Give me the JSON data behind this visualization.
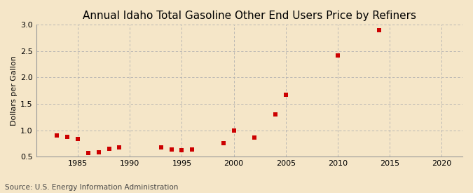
{
  "title": "Annual Idaho Total Gasoline Other End Users Price by Refiners",
  "ylabel": "Dollars per Gallon",
  "source": "Source: U.S. Energy Information Administration",
  "background_color": "#f5e6c8",
  "marker_color": "#cc0000",
  "xlim": [
    1981,
    2022
  ],
  "ylim": [
    0.5,
    3.0
  ],
  "xticks": [
    1985,
    1990,
    1995,
    2000,
    2005,
    2010,
    2015,
    2020
  ],
  "yticks": [
    0.5,
    1.0,
    1.5,
    2.0,
    2.5,
    3.0
  ],
  "ytick_labels": [
    "0.5",
    "1.0",
    "1.5",
    "2.0",
    "2.5",
    "3.0"
  ],
  "data_x": [
    1983,
    1984,
    1985,
    1986,
    1987,
    1988,
    1989,
    1993,
    1994,
    1995,
    1996,
    1999,
    2000,
    2002,
    2004,
    2005,
    2010,
    2014
  ],
  "data_y": [
    0.9,
    0.87,
    0.83,
    0.57,
    0.58,
    0.65,
    0.67,
    0.67,
    0.63,
    0.62,
    0.63,
    0.76,
    0.99,
    0.86,
    1.3,
    1.67,
    2.42,
    2.9
  ],
  "title_fontsize": 11,
  "axis_fontsize": 8,
  "source_fontsize": 7.5,
  "marker_size": 14
}
